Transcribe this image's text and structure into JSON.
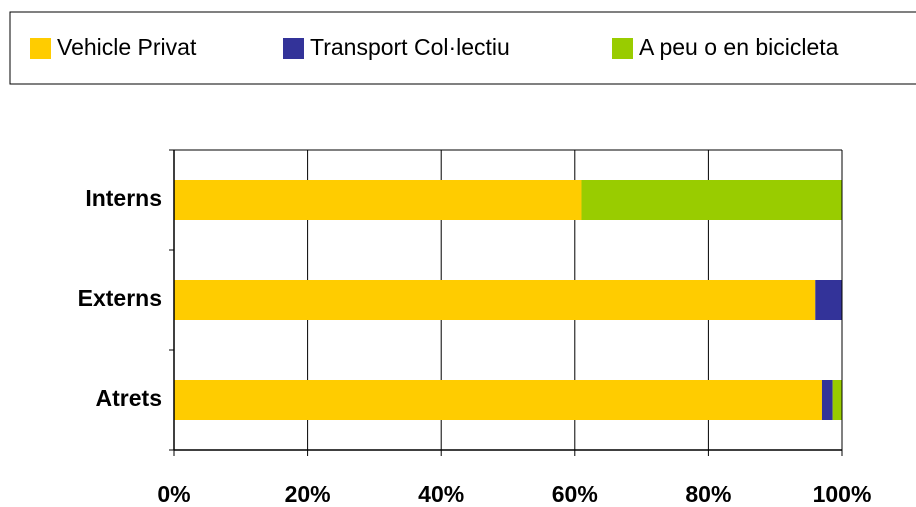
{
  "chart_data": {
    "type": "stacked_bar_horizontal",
    "categories": [
      "Interns",
      "Externs",
      "Atrets"
    ],
    "series": [
      {
        "name": "Vehicle Privat",
        "color": "#ffcc00",
        "values": [
          61,
          96,
          97
        ]
      },
      {
        "name": "Transport Col·lectiu",
        "color": "#333399",
        "values": [
          0,
          4,
          1.6
        ]
      },
      {
        "name": "A peu o en bicicleta",
        "color": "#99cc00",
        "values": [
          39,
          0,
          1.4
        ]
      }
    ],
    "xlim": [
      0,
      100
    ],
    "xticks": [
      {
        "value": 0,
        "label": "0%"
      },
      {
        "value": 20,
        "label": "20%"
      },
      {
        "value": 40,
        "label": "40%"
      },
      {
        "value": 60,
        "label": "60%"
      },
      {
        "value": 80,
        "label": "80%"
      },
      {
        "value": 100,
        "label": "100%"
      }
    ],
    "grid": true,
    "legend": "top"
  }
}
